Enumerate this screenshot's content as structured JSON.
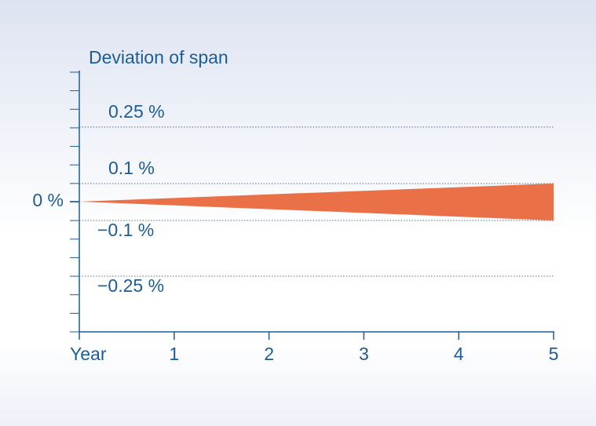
{
  "chart_data": {
    "type": "band",
    "title": "Deviation of span",
    "x": [
      0,
      1,
      2,
      3,
      4,
      5
    ],
    "xlim": [
      0,
      5
    ],
    "xticks": [
      {
        "value": 0,
        "label": "Year"
      },
      1,
      2,
      3,
      4,
      5
    ],
    "yticks": [
      {
        "value": 0.25,
        "label": "0.25 %"
      },
      {
        "value": 0.1,
        "label": "0.1 %"
      },
      {
        "value": 0,
        "label": "0 %"
      },
      {
        "value": -0.1,
        "label": "−0.1 %"
      },
      {
        "value": -0.25,
        "label": "−0.25 %"
      }
    ],
    "upper": [
      0,
      0.02,
      0.04,
      0.06,
      0.08,
      0.1
    ],
    "lower": [
      0,
      -0.02,
      -0.04,
      -0.06,
      -0.08,
      -0.1
    ],
    "color": "#ea7047",
    "grid": true
  }
}
